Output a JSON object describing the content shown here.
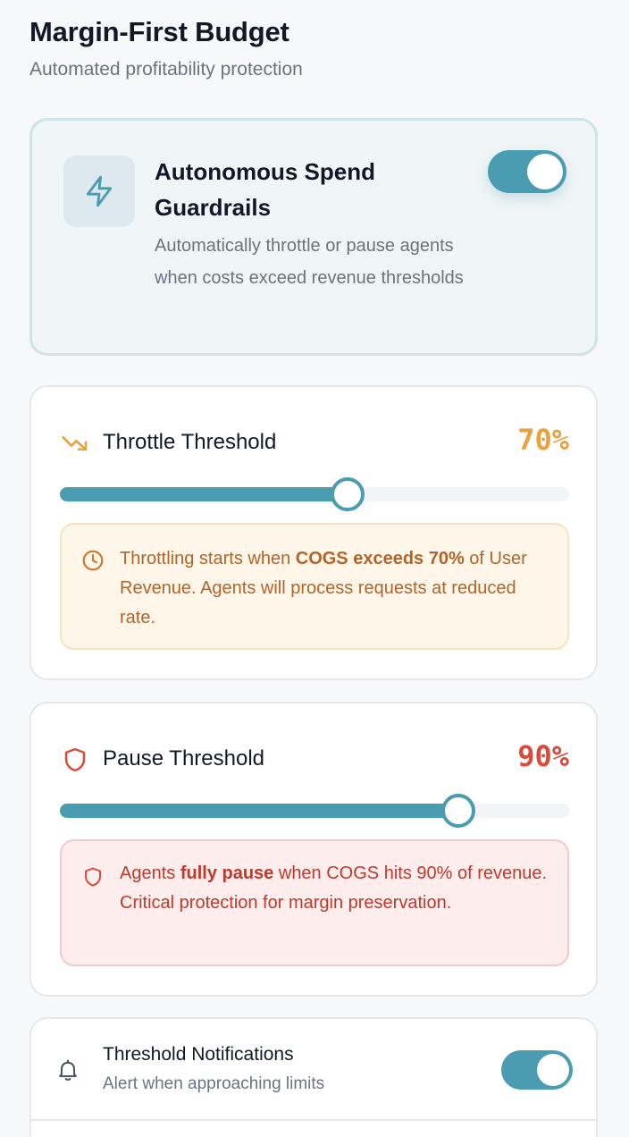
{
  "header": {
    "title": "Margin-First Budget",
    "subtitle": "Automated profitability protection"
  },
  "guardrails": {
    "icon": "lightning-icon",
    "title": "Autonomous Spend Guardrails",
    "description": "Automatically throttle or pause agents when costs exceed revenue thresholds",
    "enabled": true
  },
  "throttle": {
    "icon": "trending-down-icon",
    "label": "Throttle Threshold",
    "value_text": "70%",
    "value": 70,
    "slider_fraction": 0.565,
    "note_icon": "clock-icon",
    "note_prefix": "Throttling starts when ",
    "note_bold": "COGS exceeds 70%",
    "note_suffix": " of User Revenue. Agents will process requests at reduced rate.",
    "color": "#e8a23e"
  },
  "pause": {
    "icon": "shield-icon",
    "label": "Pause Threshold",
    "value_text": "90%",
    "value": 90,
    "slider_fraction": 0.782,
    "note_icon": "shield-icon",
    "note_prefix": "Agents ",
    "note_bold": "fully pause",
    "note_suffix": " when COGS hits 90% of revenue. Critical protection for margin preservation.",
    "color": "#d94c3d"
  },
  "notifications": {
    "icon": "bell-icon",
    "title": "Threshold Notifications",
    "description": "Alert when approaching limits",
    "enabled": true
  },
  "colors": {
    "accent": "#4a9db1",
    "warning": "#e8a23e",
    "danger": "#d94c3d"
  }
}
